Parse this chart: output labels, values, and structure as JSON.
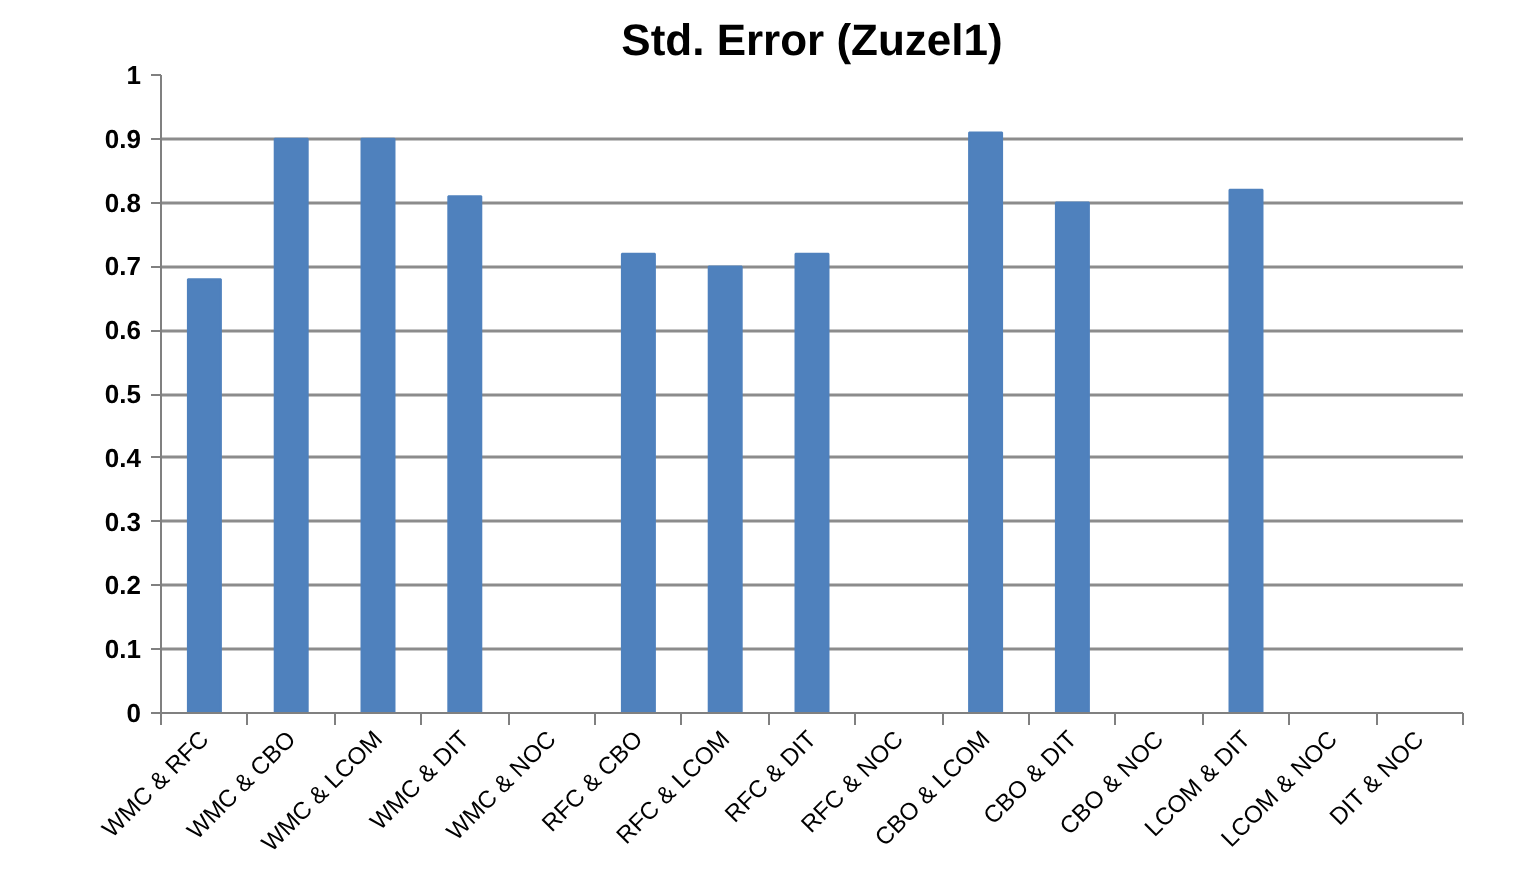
{
  "chart_data": {
    "type": "bar",
    "title": "Std. Error (Zuzel1)",
    "categories": [
      "WMC & RFC",
      "WMC & CBO",
      "WMC & LCOM",
      "WMC & DIT",
      "WMC & NOC",
      "RFC & CBO",
      "RFC & LCOM",
      "RFC & DIT",
      "RFC & NOC",
      "CBO & LCOM",
      "CBO & DIT",
      "CBO & NOC",
      "LCOM & DIT",
      "LCOM & NOC",
      "DIT & NOC"
    ],
    "values": [
      0.68,
      0.9,
      0.9,
      0.81,
      0,
      0.72,
      0.7,
      0.72,
      0,
      0.91,
      0.8,
      0,
      0.82,
      0,
      0
    ],
    "color": "#4f81bd",
    "ylim": [
      0,
      1
    ],
    "yticks": [
      0,
      0.1,
      0.2,
      0.3,
      0.4,
      0.5,
      0.6,
      0.7,
      0.8,
      0.9,
      1
    ],
    "grid": "y"
  }
}
